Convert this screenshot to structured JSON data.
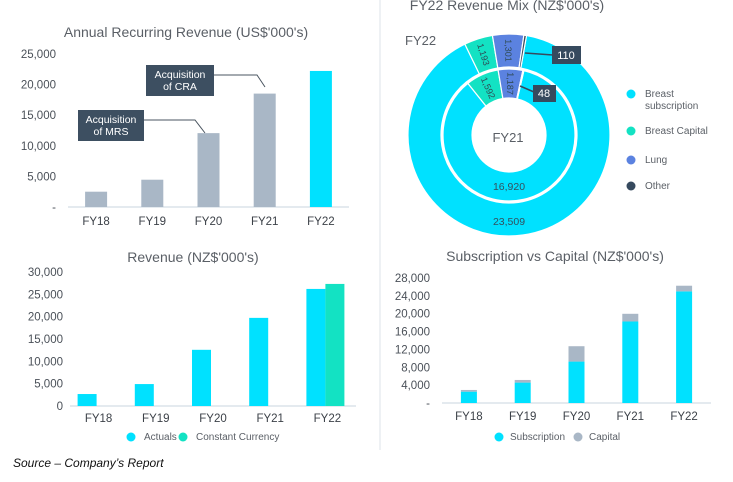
{
  "colors": {
    "cyan": "#00e1ff",
    "teal": "#13e2c3",
    "grey": "#a9b7c6",
    "lung": "#5b82e0",
    "other": "#364a5e",
    "note": "#3d4f61",
    "axis": "#dbe3ea"
  },
  "source": "Source – Company’s Report",
  "chart_data": [
    {
      "type": "bar",
      "title": "Annual Recurring Revenue (US$'000's)",
      "categories": [
        "FY18",
        "FY19",
        "FY20",
        "FY21",
        "FY22"
      ],
      "values": [
        2500,
        4460,
        12070,
        18530,
        22230
      ],
      "highlight": "FY22",
      "ylim": [
        0,
        25000
      ],
      "yticks": [
        0,
        5000,
        10000,
        15000,
        20000,
        25000
      ],
      "ytick_labels": [
        "-",
        "5,000",
        "10,000",
        "15,000",
        "20,000",
        "25,000"
      ],
      "annotations": [
        {
          "text": [
            "Acquisition",
            "of MRS"
          ],
          "target": "FY20"
        },
        {
          "text": [
            "Acquisition",
            "of CRA"
          ],
          "target": "FY21"
        }
      ]
    },
    {
      "type": "pie",
      "title": "FY22 Revenue Mix (NZ$'000's)",
      "legend": [
        "Breast subscription",
        "Breast Capital",
        "Lung",
        "Other"
      ],
      "legend_lines": [
        [
          "Breast",
          "subscription"
        ],
        [
          "Breast Capital"
        ],
        [
          "Lung"
        ],
        [
          "Other"
        ]
      ],
      "legend_placement": "right",
      "rings": [
        {
          "name": "FY22",
          "values": [
            23509,
            1193,
            1301,
            110
          ],
          "labels": [
            "23,509",
            "1,193",
            "1,301",
            "110"
          ]
        },
        {
          "name": "FY21",
          "values": [
            16920,
            1592,
            1187,
            48
          ],
          "labels": [
            "16,920",
            "1,592",
            "1,187",
            "48"
          ]
        }
      ]
    },
    {
      "type": "bar",
      "title": "Revenue (NZ$'000's)",
      "categories": [
        "FY18",
        "FY19",
        "FY20",
        "FY21",
        "FY22"
      ],
      "series": [
        {
          "name": "Actuals",
          "values": [
            2680,
            4910,
            12580,
            19730,
            26210
          ]
        },
        {
          "name": "Constant Currency",
          "values": [
            null,
            null,
            null,
            null,
            27330
          ]
        }
      ],
      "ylim": [
        0,
        30000
      ],
      "yticks": [
        0,
        5000,
        10000,
        15000,
        20000,
        25000,
        30000
      ],
      "ytick_labels": [
        "0",
        "5,000",
        "10,000",
        "15,000",
        "20,000",
        "25,000",
        "30,000"
      ],
      "legend_placement": "bottom"
    },
    {
      "type": "bar",
      "stacked": true,
      "title": "Subscription vs Capital (NZ$'000's)",
      "categories": [
        "FY18",
        "FY19",
        "FY20",
        "FY21",
        "FY22"
      ],
      "series": [
        {
          "name": "Subscription",
          "values": [
            2540,
            4570,
            9280,
            18260,
            25000
          ]
        },
        {
          "name": "Capital",
          "values": [
            380,
            590,
            3440,
            1720,
            1270
          ]
        }
      ],
      "ylim": [
        0,
        28000
      ],
      "yticks": [
        0,
        4000,
        8000,
        12000,
        16000,
        20000,
        24000,
        28000
      ],
      "ytick_labels": [
        "-",
        "4,000",
        "8,000",
        "12,000",
        "16,000",
        "20,000",
        "24,000",
        "28,000"
      ],
      "legend_placement": "bottom"
    }
  ]
}
